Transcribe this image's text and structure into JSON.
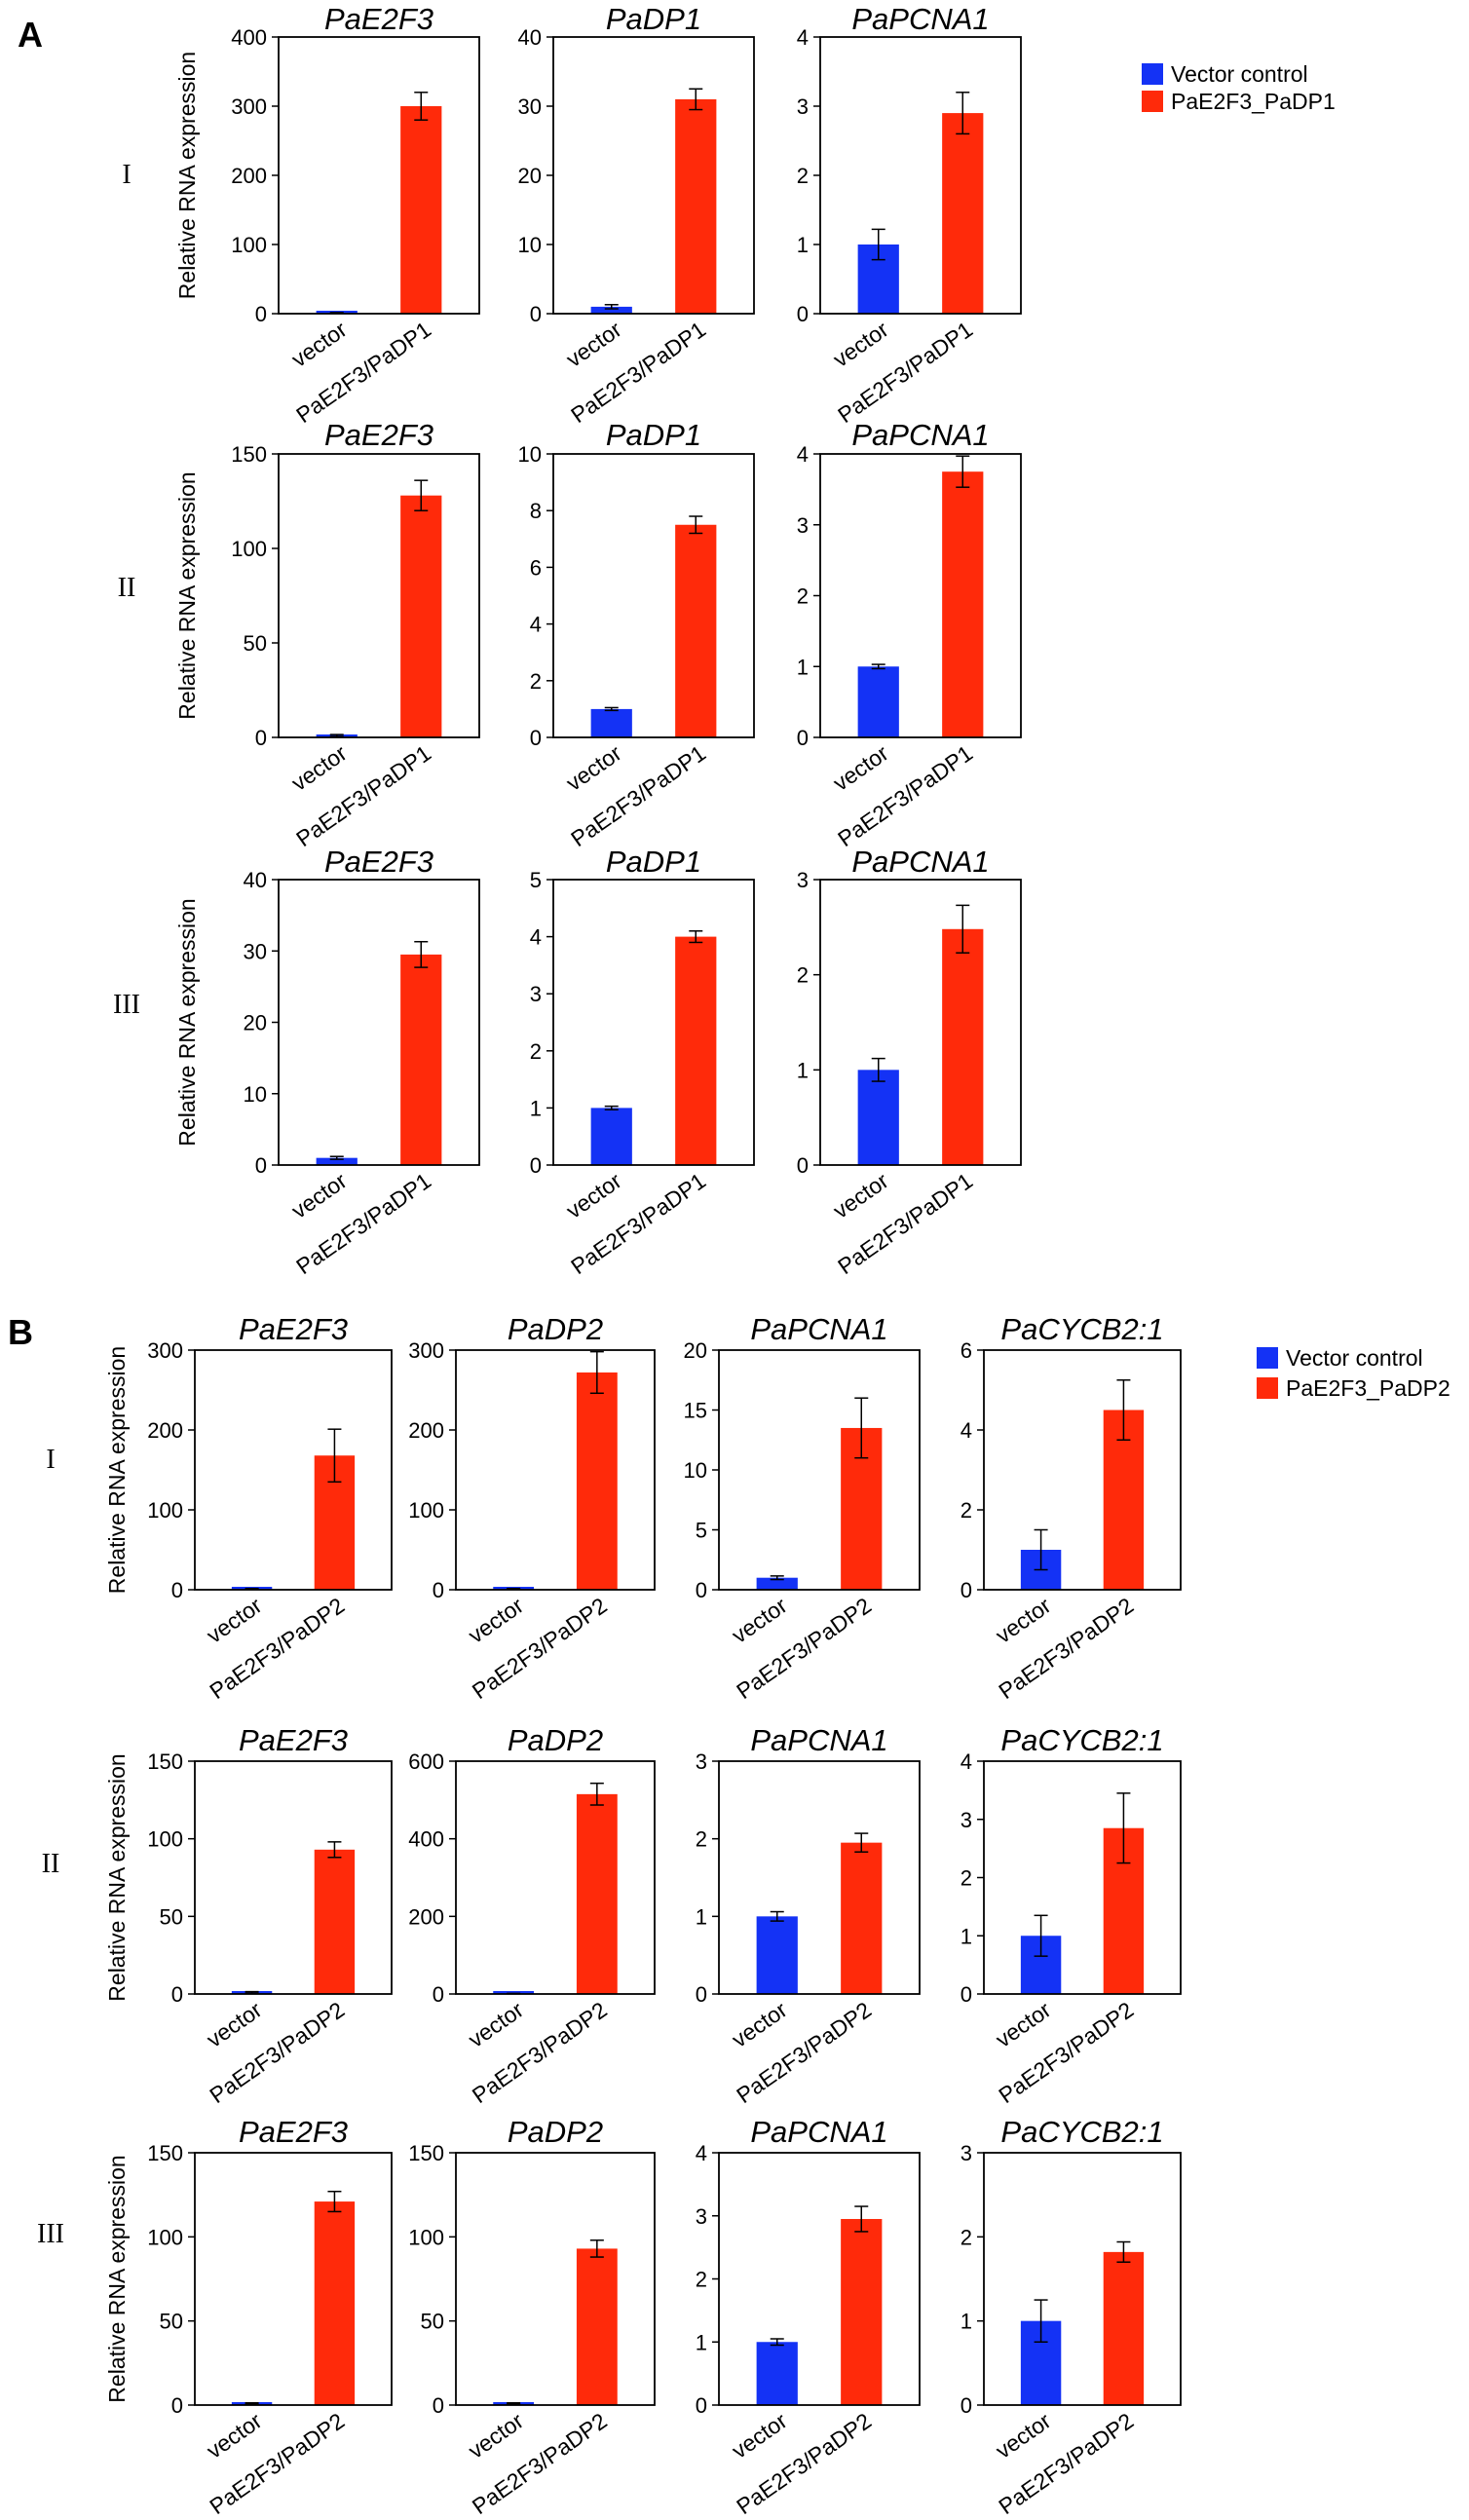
{
  "panels": [
    {
      "letter": "A",
      "legend": [
        {
          "label": "Vector control",
          "color": "#1432f5"
        },
        {
          "label": "PaE2F3_PaDP1",
          "color": "#ff2a0a"
        }
      ],
      "categories": [
        "vector",
        "PaE2F3/PaDP1"
      ],
      "y_axis_label": "Relative RNA expression",
      "rows": [
        {
          "label": "I",
          "charts": [
            {
              "type": "bar",
              "title": "PaE2F3",
              "ticks": [
                "0",
                "100",
                "200",
                "300",
                "400"
              ],
              "ylim": [
                0,
                400
              ],
              "values": [
                1,
                300
              ],
              "errors": [
                0.5,
                20
              ]
            },
            {
              "type": "bar",
              "title": "PaDP1",
              "ticks": [
                "0",
                "10",
                "20",
                "30",
                "40"
              ],
              "ylim": [
                0,
                40
              ],
              "values": [
                1,
                31
              ],
              "errors": [
                0.3,
                1.5
              ]
            },
            {
              "type": "bar",
              "title": "PaPCNA1",
              "ticks": [
                "0",
                "1",
                "2",
                "3",
                "4"
              ],
              "ylim": [
                0,
                4
              ],
              "values": [
                1,
                2.9
              ],
              "errors": [
                0.22,
                0.3
              ]
            }
          ]
        },
        {
          "label": "II",
          "charts": [
            {
              "type": "bar",
              "title": "PaE2F3",
              "ticks": [
                "0",
                "50",
                "100",
                "150"
              ],
              "ylim": [
                0,
                150
              ],
              "values": [
                1,
                128
              ],
              "errors": [
                0.5,
                8
              ]
            },
            {
              "type": "bar",
              "title": "PaDP1",
              "ticks": [
                "0",
                "2",
                "4",
                "6",
                "8",
                "10"
              ],
              "ylim": [
                0,
                10
              ],
              "values": [
                1,
                7.5
              ],
              "errors": [
                0.05,
                0.3
              ]
            },
            {
              "type": "bar",
              "title": "PaPCNA1",
              "ticks": [
                "0",
                "1",
                "2",
                "3",
                "4"
              ],
              "ylim": [
                0,
                4
              ],
              "values": [
                1,
                3.75
              ],
              "errors": [
                0.03,
                0.22
              ]
            }
          ]
        },
        {
          "label": "III",
          "charts": [
            {
              "type": "bar",
              "title": "PaE2F3",
              "ticks": [
                "0",
                "10",
                "20",
                "30",
                "40"
              ],
              "ylim": [
                0,
                40
              ],
              "values": [
                1,
                29.5
              ],
              "errors": [
                0.2,
                1.8
              ]
            },
            {
              "type": "bar",
              "title": "PaDP1",
              "ticks": [
                "0",
                "1",
                "2",
                "3",
                "4",
                "5"
              ],
              "ylim": [
                0,
                5
              ],
              "values": [
                1,
                4.0
              ],
              "errors": [
                0.03,
                0.1
              ]
            },
            {
              "type": "bar",
              "title": "PaPCNA1",
              "ticks": [
                "0",
                "1",
                "2",
                "3"
              ],
              "ylim": [
                0,
                3
              ],
              "values": [
                1,
                2.48
              ],
              "errors": [
                0.12,
                0.25
              ]
            }
          ]
        }
      ]
    },
    {
      "letter": "B",
      "legend": [
        {
          "label": "Vector control",
          "color": "#1432f5"
        },
        {
          "label": "PaE2F3_PaDP2",
          "color": "#ff2a0a"
        }
      ],
      "categories": [
        "vector",
        "PaE2F3/PaDP2"
      ],
      "y_axis_label": "Relative RNA expression",
      "rows": [
        {
          "label": "I",
          "charts": [
            {
              "type": "bar",
              "title": "PaE2F3",
              "ticks": [
                "0",
                "100",
                "200",
                "300"
              ],
              "ylim": [
                0,
                300
              ],
              "values": [
                1,
                168
              ],
              "errors": [
                0.5,
                33
              ]
            },
            {
              "type": "bar",
              "title": "PaDP2",
              "ticks": [
                "0",
                "100",
                "200",
                "300"
              ],
              "ylim": [
                0,
                300
              ],
              "values": [
                1,
                272
              ],
              "errors": [
                0.5,
                26
              ]
            },
            {
              "type": "bar",
              "title": "PaPCNA1",
              "ticks": [
                "0",
                "5",
                "10",
                "15",
                "20"
              ],
              "ylim": [
                0,
                20
              ],
              "values": [
                1,
                13.5
              ],
              "errors": [
                0.15,
                2.5
              ]
            },
            {
              "type": "bar",
              "title": "PaCYCB2:1",
              "ticks": [
                "0",
                "2",
                "4",
                "6"
              ],
              "ylim": [
                0,
                6
              ],
              "values": [
                1,
                4.5
              ],
              "errors": [
                0.5,
                0.75
              ]
            }
          ]
        },
        {
          "label": "II",
          "charts": [
            {
              "type": "bar",
              "title": "PaE2F3",
              "ticks": [
                "0",
                "50",
                "100",
                "150"
              ],
              "ylim": [
                0,
                150
              ],
              "values": [
                1,
                93
              ],
              "errors": [
                0.5,
                5
              ]
            },
            {
              "type": "bar",
              "title": "PaDP2",
              "ticks": [
                "0",
                "200",
                "400",
                "600"
              ],
              "ylim": [
                0,
                600
              ],
              "values": [
                1,
                515
              ],
              "errors": [
                0.5,
                28
              ]
            },
            {
              "type": "bar",
              "title": "PaPCNA1",
              "ticks": [
                "0",
                "1",
                "2",
                "3"
              ],
              "ylim": [
                0,
                3
              ],
              "values": [
                1,
                1.95
              ],
              "errors": [
                0.06,
                0.12
              ]
            },
            {
              "type": "bar",
              "title": "PaCYCB2:1",
              "ticks": [
                "0",
                "1",
                "2",
                "3",
                "4"
              ],
              "ylim": [
                0,
                4
              ],
              "values": [
                1,
                2.85
              ],
              "errors": [
                0.35,
                0.6
              ]
            }
          ]
        },
        {
          "label": "III",
          "charts": [
            {
              "type": "bar",
              "title": "PaE2F3",
              "ticks": [
                "0",
                "50",
                "100",
                "150"
              ],
              "ylim": [
                0,
                150
              ],
              "values": [
                1,
                121
              ],
              "errors": [
                0.3,
                6
              ]
            },
            {
              "type": "bar",
              "title": "PaDP2",
              "ticks": [
                "0",
                "50",
                "100",
                "150"
              ],
              "ylim": [
                0,
                150
              ],
              "values": [
                1,
                93
              ],
              "errors": [
                0.3,
                5
              ]
            },
            {
              "type": "bar",
              "title": "PaPCNA1",
              "ticks": [
                "0",
                "1",
                "2",
                "3",
                "4"
              ],
              "ylim": [
                0,
                4
              ],
              "values": [
                1,
                2.95
              ],
              "errors": [
                0.05,
                0.2
              ]
            },
            {
              "type": "bar",
              "title": "PaCYCB2:1",
              "ticks": [
                "0",
                "1",
                "2",
                "3"
              ],
              "ylim": [
                0,
                3
              ],
              "values": [
                1,
                1.82
              ],
              "errors": [
                0.25,
                0.12
              ]
            }
          ]
        }
      ]
    }
  ],
  "chart_data": [
    {
      "panel": "A",
      "row": "I",
      "type": "bar",
      "title": "PaE2F3",
      "categories": [
        "vector",
        "PaE2F3/PaDP1"
      ],
      "values": [
        1,
        300
      ],
      "ylabel": "Relative RNA expression",
      "ylim": [
        0,
        400
      ]
    },
    {
      "panel": "A",
      "row": "I",
      "type": "bar",
      "title": "PaDP1",
      "categories": [
        "vector",
        "PaE2F3/PaDP1"
      ],
      "values": [
        1,
        31
      ],
      "ylim": [
        0,
        40
      ]
    },
    {
      "panel": "A",
      "row": "I",
      "type": "bar",
      "title": "PaPCNA1",
      "categories": [
        "vector",
        "PaE2F3/PaDP1"
      ],
      "values": [
        1,
        2.9
      ],
      "ylim": [
        0,
        4
      ]
    },
    {
      "panel": "A",
      "row": "II",
      "type": "bar",
      "title": "PaE2F3",
      "categories": [
        "vector",
        "PaE2F3/PaDP1"
      ],
      "values": [
        1,
        128
      ],
      "ylabel": "Relative RNA expression",
      "ylim": [
        0,
        150
      ]
    },
    {
      "panel": "A",
      "row": "II",
      "type": "bar",
      "title": "PaDP1",
      "categories": [
        "vector",
        "PaE2F3/PaDP1"
      ],
      "values": [
        1,
        7.5
      ],
      "ylim": [
        0,
        10
      ]
    },
    {
      "panel": "A",
      "row": "II",
      "type": "bar",
      "title": "PaPCNA1",
      "categories": [
        "vector",
        "PaE2F3/PaDP1"
      ],
      "values": [
        1,
        3.75
      ],
      "ylim": [
        0,
        4
      ]
    },
    {
      "panel": "A",
      "row": "III",
      "type": "bar",
      "title": "PaE2F3",
      "categories": [
        "vector",
        "PaE2F3/PaDP1"
      ],
      "values": [
        1,
        29.5
      ],
      "ylabel": "Relative RNA expression",
      "ylim": [
        0,
        40
      ]
    },
    {
      "panel": "A",
      "row": "III",
      "type": "bar",
      "title": "PaDP1",
      "categories": [
        "vector",
        "PaE2F3/PaDP1"
      ],
      "values": [
        1,
        4.0
      ],
      "ylim": [
        0,
        5
      ]
    },
    {
      "panel": "A",
      "row": "III",
      "type": "bar",
      "title": "PaPCNA1",
      "categories": [
        "vector",
        "PaE2F3/PaDP1"
      ],
      "values": [
        1,
        2.48
      ],
      "ylim": [
        0,
        3
      ]
    },
    {
      "panel": "B",
      "row": "I",
      "type": "bar",
      "title": "PaE2F3",
      "categories": [
        "vector",
        "PaE2F3/PaDP2"
      ],
      "values": [
        1,
        168
      ],
      "ylabel": "Relative RNA expression",
      "ylim": [
        0,
        300
      ]
    },
    {
      "panel": "B",
      "row": "I",
      "type": "bar",
      "title": "PaDP2",
      "categories": [
        "vector",
        "PaE2F3/PaDP2"
      ],
      "values": [
        1,
        272
      ],
      "ylim": [
        0,
        300
      ]
    },
    {
      "panel": "B",
      "row": "I",
      "type": "bar",
      "title": "PaPCNA1",
      "categories": [
        "vector",
        "PaE2F3/PaDP2"
      ],
      "values": [
        1,
        13.5
      ],
      "ylim": [
        0,
        20
      ]
    },
    {
      "panel": "B",
      "row": "I",
      "type": "bar",
      "title": "PaCYCB2:1",
      "categories": [
        "vector",
        "PaE2F3/PaDP2"
      ],
      "values": [
        1,
        4.5
      ],
      "ylim": [
        0,
        6
      ]
    },
    {
      "panel": "B",
      "row": "II",
      "type": "bar",
      "title": "PaE2F3",
      "categories": [
        "vector",
        "PaE2F3/PaDP2"
      ],
      "values": [
        1,
        93
      ],
      "ylabel": "Relative RNA expression",
      "ylim": [
        0,
        150
      ]
    },
    {
      "panel": "B",
      "row": "II",
      "type": "bar",
      "title": "PaDP2",
      "categories": [
        "vector",
        "PaE2F3/PaDP2"
      ],
      "values": [
        1,
        515
      ],
      "ylim": [
        0,
        600
      ]
    },
    {
      "panel": "B",
      "row": "II",
      "type": "bar",
      "title": "PaPCNA1",
      "categories": [
        "vector",
        "PaE2F3/PaDP2"
      ],
      "values": [
        1,
        1.95
      ],
      "ylim": [
        0,
        3
      ]
    },
    {
      "panel": "B",
      "row": "II",
      "type": "bar",
      "title": "PaCYCB2:1",
      "categories": [
        "vector",
        "PaE2F3/PaDP2"
      ],
      "values": [
        1,
        2.85
      ],
      "ylim": [
        0,
        4
      ]
    },
    {
      "panel": "B",
      "row": "III",
      "type": "bar",
      "title": "PaE2F3",
      "categories": [
        "vector",
        "PaE2F3/PaDP2"
      ],
      "values": [
        1,
        121
      ],
      "ylabel": "Relative RNA expression",
      "ylim": [
        0,
        150
      ]
    },
    {
      "panel": "B",
      "row": "III",
      "type": "bar",
      "title": "PaDP2",
      "categories": [
        "vector",
        "PaE2F3/PaDP2"
      ],
      "values": [
        1,
        93
      ],
      "ylim": [
        0,
        150
      ]
    },
    {
      "panel": "B",
      "row": "III",
      "type": "bar",
      "title": "PaPCNA1",
      "categories": [
        "vector",
        "PaE2F3/PaDP2"
      ],
      "values": [
        1,
        2.95
      ],
      "ylim": [
        0,
        4
      ]
    },
    {
      "panel": "B",
      "row": "III",
      "type": "bar",
      "title": "PaCYCB2:1",
      "categories": [
        "vector",
        "PaE2F3/PaDP2"
      ],
      "values": [
        1,
        1.82
      ],
      "ylim": [
        0,
        3
      ]
    }
  ]
}
